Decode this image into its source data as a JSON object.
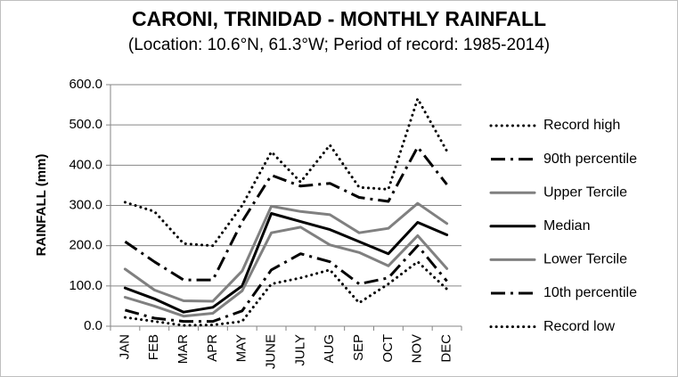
{
  "chart_data": {
    "type": "line",
    "title": "CARONI, TRINIDAD - MONTHLY RAINFALL",
    "subtitle": "(Location: 10.6°N, 61.3°W; Period of record: 1985-2014)",
    "xlabel": "",
    "ylabel": "RAINFALL (mm)",
    "ylim": [
      0,
      600
    ],
    "yticks": [
      "0.0",
      "100.0",
      "200.0",
      "300.0",
      "400.0",
      "500.0",
      "600.0"
    ],
    "categories": [
      "JAN",
      "FEB",
      "MAR",
      "APR",
      "MAY",
      "JUNE",
      "JULY",
      "AUG",
      "SEP",
      "OCT",
      "NOV",
      "DEC"
    ],
    "grid": true,
    "legend_position": "right",
    "series": [
      {
        "name": "Record high",
        "color": "#000000",
        "style": "dotted",
        "values": [
          308,
          285,
          205,
          200,
          300,
          433,
          358,
          450,
          345,
          340,
          565,
          435
        ]
      },
      {
        "name": "90th percentile",
        "color": "#000000",
        "style": "dashdot",
        "values": [
          210,
          160,
          115,
          115,
          260,
          375,
          348,
          355,
          320,
          310,
          445,
          352
        ]
      },
      {
        "name": "Upper Tercile",
        "color": "#808080",
        "style": "solid",
        "values": [
          142,
          90,
          63,
          62,
          137,
          298,
          285,
          277,
          232,
          243,
          305,
          255
        ]
      },
      {
        "name": "Median",
        "color": "#000000",
        "style": "solid",
        "values": [
          95,
          68,
          35,
          47,
          100,
          280,
          260,
          240,
          210,
          180,
          258,
          227
        ]
      },
      {
        "name": "Lower Tercile",
        "color": "#808080",
        "style": "solid",
        "values": [
          72,
          50,
          25,
          32,
          88,
          232,
          246,
          202,
          183,
          150,
          225,
          143
        ]
      },
      {
        "name": "10th percentile",
        "color": "#000000",
        "style": "dashdot",
        "values": [
          40,
          20,
          12,
          12,
          38,
          140,
          180,
          160,
          105,
          120,
          200,
          112
        ]
      },
      {
        "name": "Record low",
        "color": "#000000",
        "style": "dotted",
        "values": [
          22,
          12,
          2,
          3,
          12,
          105,
          120,
          140,
          58,
          105,
          160,
          92
        ]
      }
    ]
  }
}
